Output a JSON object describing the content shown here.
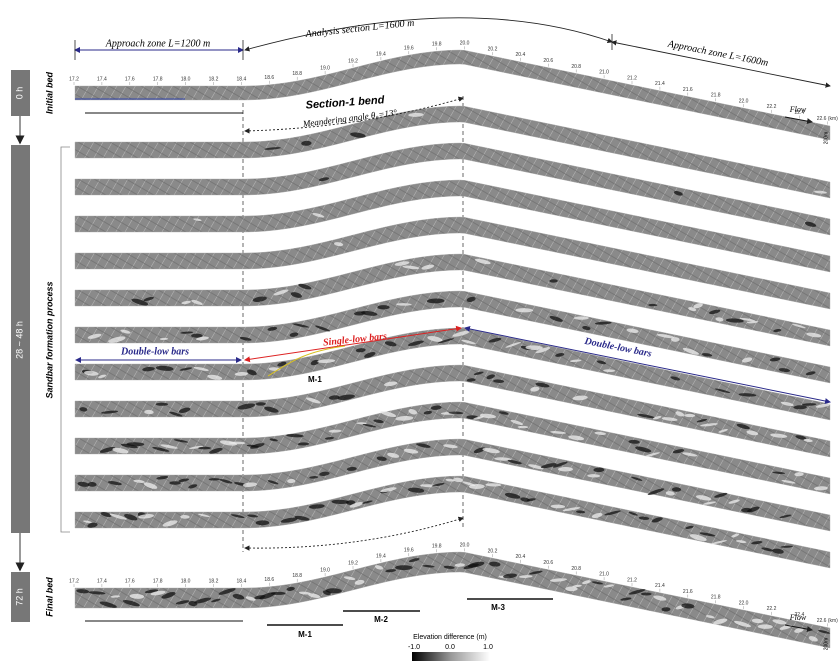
{
  "top_labels": {
    "approach_left": "Approach zone  L=1200 m",
    "analysis": "Analysis section  L=1600 m",
    "approach_right": "Approach zone  L=1600m"
  },
  "km_ticks": [
    "17.2",
    "17.4",
    "17.6",
    "17.8",
    "18.0",
    "18.2",
    "18.4",
    "18.6",
    "18.8",
    "19.0",
    "19.2",
    "19.4",
    "19.6",
    "19.8",
    "20.0",
    "20.2",
    "20.4",
    "20.6",
    "20.8",
    "21.0",
    "21.2",
    "21.4",
    "21.6",
    "21.8",
    "22.0",
    "22.2",
    "22.4",
    "22.6 (km)"
  ],
  "time_labels": [
    "0 h",
    "28 ~ 48 h",
    "72 h"
  ],
  "row_labels": {
    "initial": "Initial bed",
    "process": "Sandbar formation process",
    "final": "Final bed"
  },
  "bend": {
    "title": "Section-1 bend",
    "angle": "Meandering angle  θ₀=13°"
  },
  "flow": "Flow",
  "scale": "200m",
  "bars": {
    "left": "Double-low bars",
    "middle": "Single-low bars",
    "right": "Double-low bars"
  },
  "markers": [
    "M-1",
    "M-1",
    "M-2",
    "M-3"
  ],
  "colorbar": {
    "title": "Elevation difference (m)",
    "ticks": [
      "-1.0",
      "0.0",
      "1.0"
    ]
  }
}
